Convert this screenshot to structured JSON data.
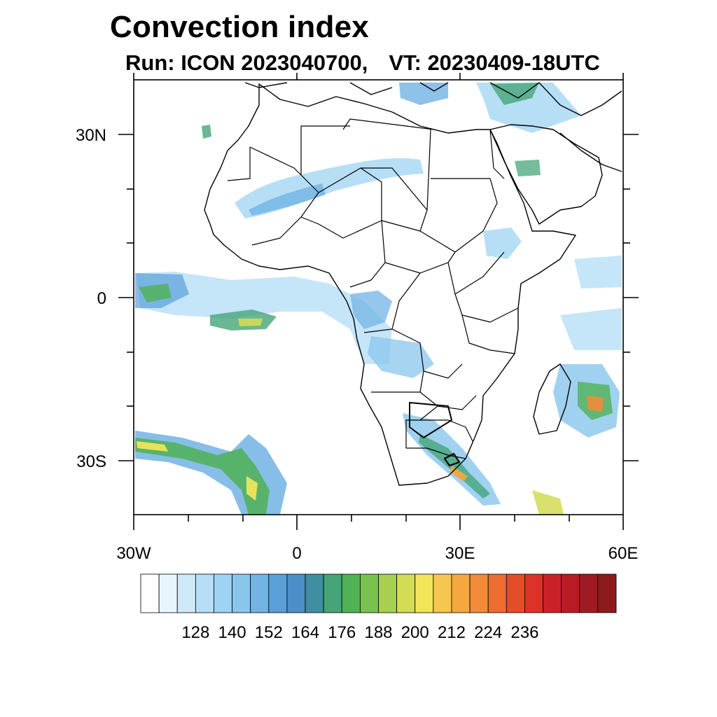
{
  "title": "Convection index",
  "subtitle": {
    "run": "Run: ICON 2023040700,",
    "valid_time": "VT: 20230409-18UTC"
  },
  "axes": {
    "lon_labels": [
      "30W",
      "0",
      "30E",
      "60E"
    ],
    "lat_labels": [
      "30N",
      "0",
      "30S"
    ],
    "lon_range": [
      -30,
      60
    ],
    "lat_range": [
      -40,
      40
    ]
  },
  "colorbar": {
    "tick_labels": [
      "128",
      "140",
      "152",
      "164",
      "176",
      "188",
      "200",
      "212",
      "224",
      "236"
    ],
    "colors": [
      "#ffffff",
      "#e8f5fd",
      "#cfe9f9",
      "#b6def6",
      "#9ed4f3",
      "#88c6ec",
      "#72b3e4",
      "#5a9fd8",
      "#4b8fc9",
      "#3e8fa1",
      "#45a579",
      "#4fb255",
      "#7ac250",
      "#a8cf4e",
      "#d2dc54",
      "#f1e557",
      "#f7c64e",
      "#f6a741",
      "#f28b38",
      "#ee6c2f",
      "#e54d2a",
      "#dc3329",
      "#cb2128",
      "#b71c25",
      "#a01b21",
      "#8c1a1d"
    ]
  },
  "features": {
    "country_borders": "black",
    "ocean_color": "#ffffff",
    "land_color": "#ffffff"
  }
}
